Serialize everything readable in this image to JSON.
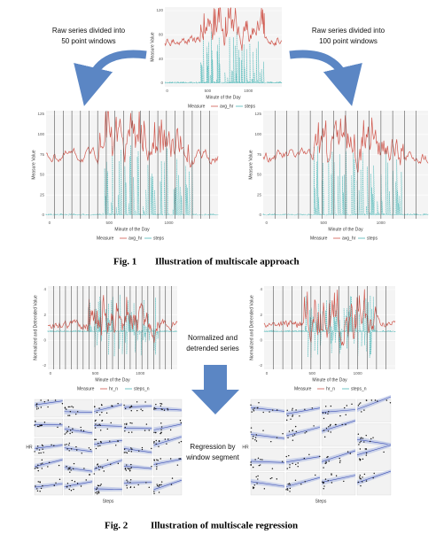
{
  "figure1": {
    "top_chart": {
      "y_label": "Measure Value",
      "x_label": "Minute of the Day",
      "y_ticks": [
        0,
        40,
        80,
        120
      ],
      "x_ticks": [
        0,
        500,
        1000
      ],
      "legend": {
        "title": "Measure",
        "items": [
          "avg_hr",
          "steps"
        ]
      }
    },
    "left_note": [
      "Raw series divided into",
      "50 point windows"
    ],
    "right_note": [
      "Raw series divided into",
      "100 point windows"
    ],
    "left_chart": {
      "y_label": "Measure Value",
      "x_label": "Minute of the Day",
      "y_ticks": [
        0,
        25,
        50,
        75,
        100,
        125
      ],
      "x_ticks": [
        0,
        500,
        1000
      ],
      "legend": {
        "title": "Measure",
        "items": [
          "avg_hr",
          "steps"
        ]
      }
    },
    "right_chart": {
      "y_label": "Measure Value",
      "x_label": "Minute of the Day",
      "y_ticks": [
        0,
        25,
        50,
        75,
        100,
        125
      ],
      "x_ticks": [
        0,
        500,
        1000
      ],
      "legend": {
        "title": "Measure",
        "items": [
          "avg_hr",
          "steps"
        ]
      }
    },
    "caption": {
      "label": "Fig. 1",
      "text": "Illustration of multiscale approach"
    }
  },
  "figure2": {
    "left_chart": {
      "y_label": "Normalized and Detrended Value",
      "x_label": "Minute of the Day",
      "y_ticks": [
        -2,
        0,
        2,
        4
      ],
      "x_ticks": [
        0,
        500,
        1000
      ],
      "legend": {
        "title": "Measure",
        "items": [
          "hr_n",
          "steps_n"
        ]
      }
    },
    "right_chart": {
      "y_label": "Normalized and Detrended Value",
      "x_label": "Minute of the Day",
      "y_ticks": [
        -2,
        0,
        2,
        4
      ],
      "x_ticks": [
        0,
        500,
        1000
      ],
      "legend": {
        "title": "Measure",
        "items": [
          "hr_n",
          "steps_n"
        ]
      }
    },
    "note_top": [
      "Normalized and",
      "detrended series"
    ],
    "note_bottom": [
      "Regression by",
      "window segment"
    ],
    "left_grid": {
      "y_label": "HR",
      "x_label": "Steps"
    },
    "right_grid": {
      "y_label": "HR",
      "x_label": "Steps"
    },
    "caption": {
      "label": "Fig. 2",
      "text": "Illustration of multiscale regression"
    }
  }
}
